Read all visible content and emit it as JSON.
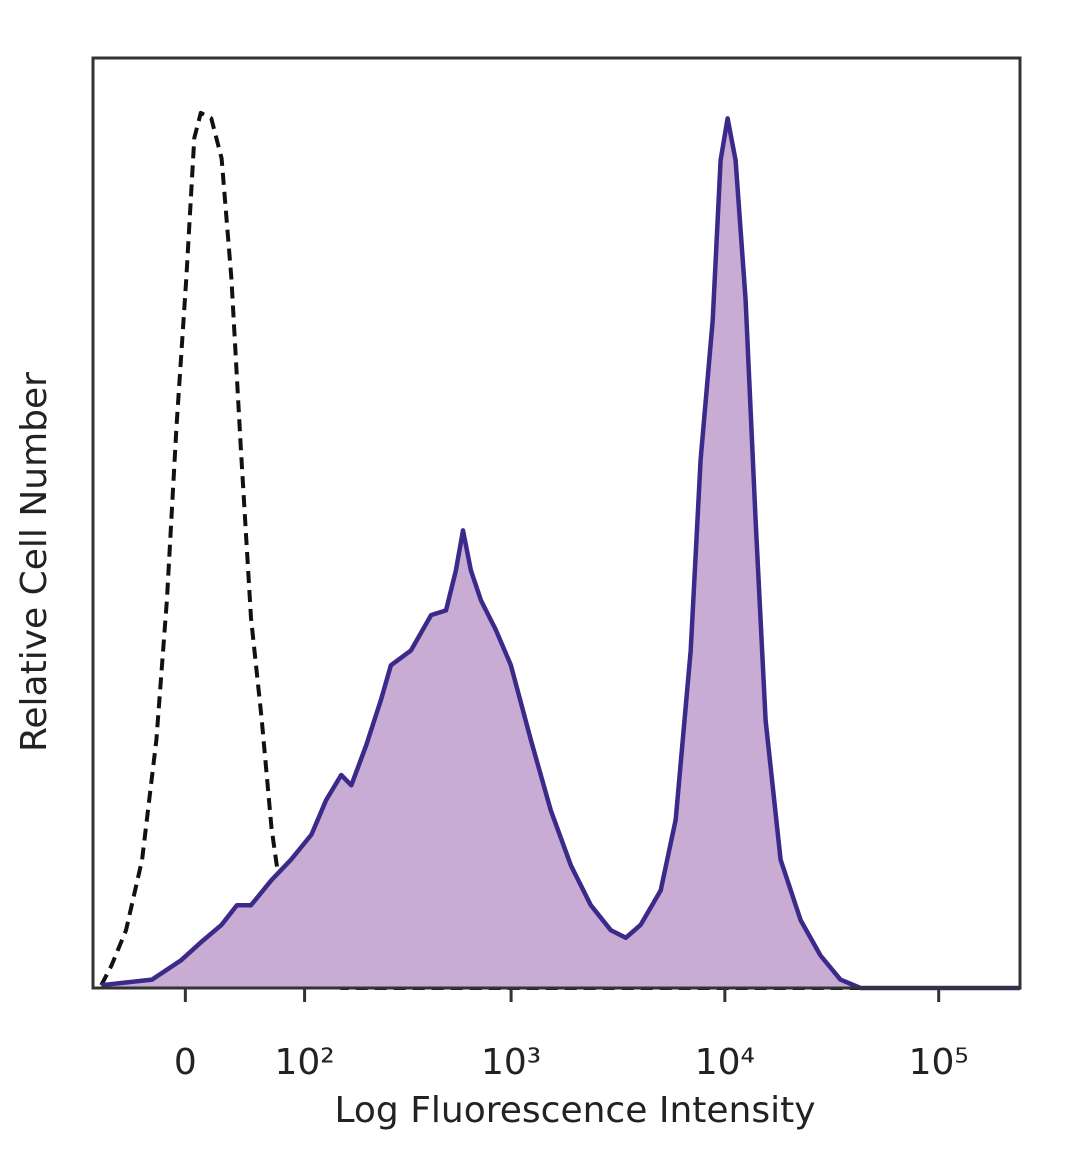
{
  "chart_data": {
    "type": "histogram-overlay",
    "x_label": "Log Fluorescence Intensity",
    "y_label": "Relative Cell Number",
    "xscale": "biexponential",
    "xlim": [
      -70,
      240000
    ],
    "ylim": [
      0,
      100
    ],
    "xticks": [
      0,
      {
        "value": 100,
        "label": "10²"
      },
      {
        "value": 1000,
        "label": "10³"
      },
      {
        "value": 10000,
        "label": "10⁴"
      },
      {
        "value": 100000,
        "label": "10⁵"
      }
    ],
    "series": [
      {
        "color": "#3b2a8a",
        "fill": "#c8acd3",
        "dashed": false,
        "x": [
          -62,
          -22,
          -2.6,
          10,
          24,
          35,
          46,
          64,
          84,
          109,
          130,
          155,
          174,
          206,
          243,
          271,
          338,
          421,
          495,
          551,
          595,
          648,
          722,
          849,
          998,
          1237,
          1534,
          1903,
          2362,
          2930,
          3440,
          4040,
          5010,
          5890,
          6920,
          7700,
          8770,
          9550,
          10300,
          11230,
          12500,
          13930,
          15510,
          18230,
          22600,
          28000,
          34700,
          43100,
          240000
        ],
        "values": [
          0.3,
          0.9,
          3.0,
          4.9,
          6.8,
          8.9,
          8.9,
          11.6,
          13.8,
          16.5,
          20.2,
          22.9,
          21.8,
          26.1,
          31.0,
          34.7,
          36.3,
          40.1,
          40.6,
          44.9,
          49.2,
          44.9,
          41.7,
          38.5,
          34.7,
          26.7,
          19.1,
          13.2,
          8.9,
          6.2,
          5.4,
          6.8,
          10.5,
          18.1,
          36.3,
          56.8,
          71.8,
          89.0,
          93.5,
          89.0,
          74.0,
          50.3,
          28.8,
          13.8,
          7.3,
          3.5,
          0.9,
          0,
          0
        ]
      },
      {
        "color": "#111111",
        "fill": null,
        "dashed": true,
        "x": [
          -62,
          -53,
          -41,
          -29,
          -19,
          -12,
          -5.8,
          0.6,
          5.8,
          10,
          17,
          24,
          31,
          38,
          46,
          55,
          64,
          73,
          90,
          116,
          155,
          240000
        ],
        "values": [
          0.3,
          2.4,
          6.2,
          13.8,
          26.7,
          41.7,
          60.2,
          76.3,
          91.4,
          94.1,
          93.5,
          89.2,
          76.3,
          58.1,
          39.8,
          29.0,
          17.2,
          10.2,
          5.2,
          1.4,
          0,
          0
        ]
      }
    ]
  }
}
